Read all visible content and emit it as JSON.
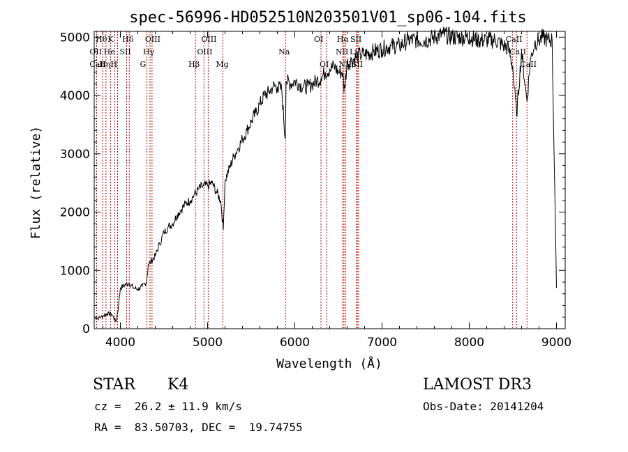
{
  "chart_data": {
    "type": "line",
    "title": "spec-56996-HD052510N203501V01_sp06-104.fits",
    "xlabel": "Wavelength (Å)",
    "ylabel": "Flux (relative)",
    "xlim": [
      3700,
      9100
    ],
    "ylim": [
      0,
      5100
    ],
    "xticks": [
      4000,
      5000,
      6000,
      7000,
      8000,
      9000
    ],
    "yticks": [
      0,
      1000,
      2000,
      3000,
      4000,
      5000
    ],
    "series": [
      {
        "name": "spectrum",
        "x": [
          3700,
          3750,
          3800,
          3850,
          3900,
          3950,
          3980,
          4000,
          4050,
          4100,
          4150,
          4200,
          4250,
          4300,
          4320,
          4350,
          4400,
          4450,
          4500,
          4550,
          4600,
          4650,
          4700,
          4750,
          4800,
          4850,
          4900,
          4950,
          5000,
          5050,
          5100,
          5150,
          5180,
          5200,
          5250,
          5300,
          5350,
          5400,
          5450,
          5500,
          5550,
          5600,
          5650,
          5700,
          5750,
          5800,
          5850,
          5890,
          5900,
          5950,
          6000,
          6050,
          6100,
          6150,
          6200,
          6250,
          6300,
          6350,
          6400,
          6450,
          6500,
          6550,
          6563,
          6600,
          6650,
          6700,
          6750,
          6800,
          6900,
          7000,
          7100,
          7200,
          7300,
          7400,
          7500,
          7600,
          7700,
          7800,
          7900,
          8000,
          8100,
          8200,
          8300,
          8400,
          8450,
          8498,
          8542,
          8600,
          8662,
          8700,
          8750,
          8800,
          8850,
          8900,
          8950,
          9000
        ],
        "values": [
          200,
          180,
          220,
          260,
          250,
          120,
          400,
          700,
          750,
          780,
          700,
          680,
          720,
          800,
          1100,
          1150,
          1250,
          1450,
          1650,
          1750,
          1800,
          1950,
          2050,
          2150,
          2200,
          2300,
          2400,
          2450,
          2450,
          2500,
          2350,
          2200,
          1700,
          2550,
          2750,
          2950,
          3100,
          3250,
          3400,
          3550,
          3700,
          3850,
          4000,
          4050,
          4150,
          4150,
          4100,
          3250,
          4250,
          4200,
          4250,
          4200,
          4150,
          4150,
          4200,
          4250,
          4300,
          4400,
          4450,
          4500,
          4400,
          4400,
          4050,
          4550,
          4600,
          4650,
          4700,
          4700,
          4750,
          4800,
          4850,
          4850,
          4950,
          4950,
          4950,
          5000,
          5050,
          5000,
          5000,
          5000,
          4950,
          4950,
          4950,
          4850,
          4800,
          4500,
          3650,
          4750,
          3900,
          4600,
          4900,
          4950,
          5000,
          4950,
          4950,
          700
        ]
      }
    ],
    "lines": [
      {
        "label": "Hθ",
        "wl": 3797,
        "row": 1
      },
      {
        "label": "OII",
        "wl": 3727,
        "row": 2
      },
      {
        "label": "Hη",
        "wl": 3835,
        "row": 3
      },
      {
        "label": "CaII",
        "wl": 3727,
        "row": 3
      },
      {
        "label": "He",
        "wl": 3889,
        "row": 2
      },
      {
        "label": "K",
        "wl": 3934,
        "row": 1
      },
      {
        "label": "H",
        "wl": 3968,
        "row": 3
      },
      {
        "label": "Hδ",
        "wl": 4102,
        "row": 1
      },
      {
        "label": "SII",
        "wl": 4072,
        "row": 2
      },
      {
        "label": "OIII",
        "wl": 4363,
        "row": 1
      },
      {
        "label": "Hγ",
        "wl": 4340,
        "row": 2
      },
      {
        "label": "G",
        "wl": 4304,
        "row": 3
      },
      {
        "label": "Hβ",
        "wl": 4861,
        "row": 3
      },
      {
        "label": "OIII",
        "wl": 5007,
        "row": 1
      },
      {
        "label": "OIII",
        "wl": 4959,
        "row": 2
      },
      {
        "label": "Mg",
        "wl": 5175,
        "row": 3
      },
      {
        "label": "Na",
        "wl": 5893,
        "row": 2
      },
      {
        "label": "OI",
        "wl": 6300,
        "row": 1
      },
      {
        "label": "OI",
        "wl": 6364,
        "row": 3
      },
      {
        "label": "Hα",
        "wl": 6563,
        "row": 1
      },
      {
        "label": "SII",
        "wl": 6716,
        "row": 1
      },
      {
        "label": "NII",
        "wl": 6548,
        "row": 2
      },
      {
        "label": "Li",
        "wl": 6708,
        "row": 2
      },
      {
        "label": "NII",
        "wl": 6583,
        "row": 3
      },
      {
        "label": "SII",
        "wl": 6731,
        "row": 3
      },
      {
        "label": "CaII",
        "wl": 8498,
        "row": 1
      },
      {
        "label": "CaII",
        "wl": 8542,
        "row": 2
      },
      {
        "label": "CaII",
        "wl": 8662,
        "row": 3
      }
    ]
  },
  "info": {
    "object_type": "STAR",
    "subclass": "K4",
    "redshift": "cz =  26.2 ± 11.9 km/s",
    "coords": "RA =  83.50703, DEC =  19.74755",
    "survey": "LAMOST DR3",
    "obs_date": "Obs-Date: 20141204"
  }
}
